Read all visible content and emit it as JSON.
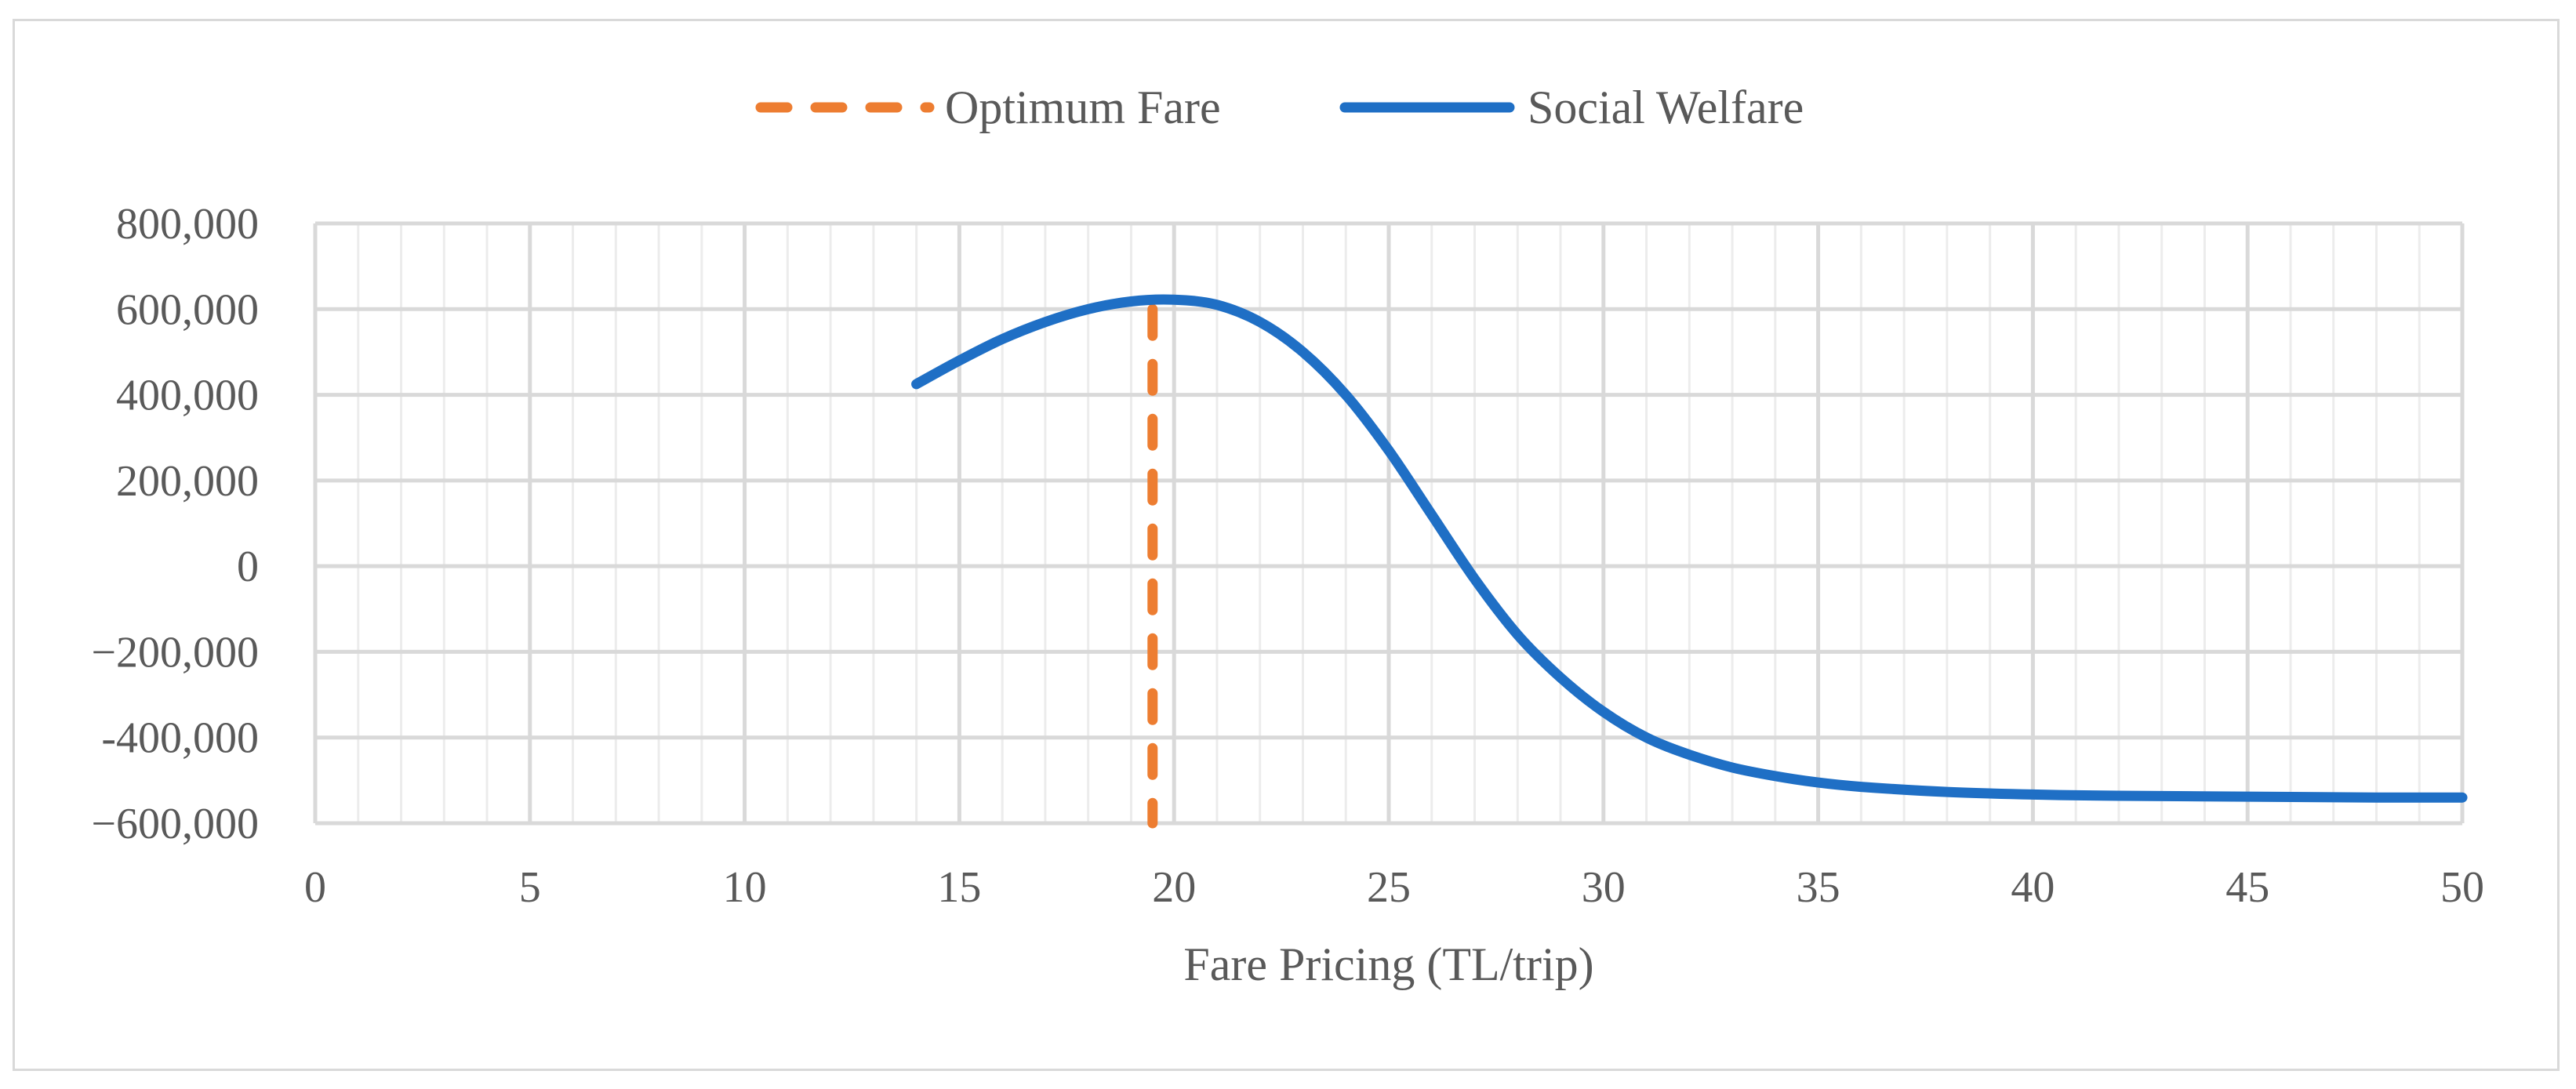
{
  "chart_data": {
    "type": "line",
    "title": "",
    "xlabel": "Fare Pricing (TL/trip)",
    "ylabel": "",
    "xlim": [
      0,
      50
    ],
    "ylim": [
      -600000,
      800000
    ],
    "x_ticks": [
      0,
      5,
      10,
      15,
      20,
      25,
      30,
      35,
      40,
      45,
      50
    ],
    "x_tick_labels": [
      "0",
      "5",
      "10",
      "15",
      "20",
      "25",
      "30",
      "35",
      "40",
      "45",
      "50"
    ],
    "y_ticks": [
      800000,
      600000,
      400000,
      200000,
      0,
      -200000,
      -400000,
      -600000
    ],
    "y_tick_labels": [
      "800,000",
      "600,000",
      "400,000",
      "200,000",
      "0",
      "−200,000",
      "-400,000",
      "−600,000"
    ],
    "x_minor_step": 1,
    "grid": true,
    "legend_position": "top-center",
    "series": [
      {
        "name": "Optimum Fare",
        "style": "dashed",
        "color": "#ed7d31",
        "x": [
          19.5,
          19.5
        ],
        "y": [
          600000,
          -600000
        ]
      },
      {
        "name": "Social Welfare",
        "style": "solid",
        "color": "#1f6fc5",
        "x": [
          14,
          15,
          16,
          17,
          18,
          19,
          20,
          21,
          22,
          23,
          24,
          25,
          26,
          27,
          28,
          29,
          30,
          31,
          32,
          33,
          34,
          35,
          36,
          38,
          40,
          42,
          45,
          48,
          50
        ],
        "y": [
          425000,
          480000,
          530000,
          570000,
          600000,
          618000,
          622000,
          610000,
          570000,
          500000,
          400000,
          270000,
          120000,
          -30000,
          -160000,
          -260000,
          -340000,
          -400000,
          -440000,
          -470000,
          -490000,
          -505000,
          -515000,
          -527000,
          -533000,
          -536000,
          -538000,
          -540000,
          -540000
        ]
      }
    ]
  }
}
